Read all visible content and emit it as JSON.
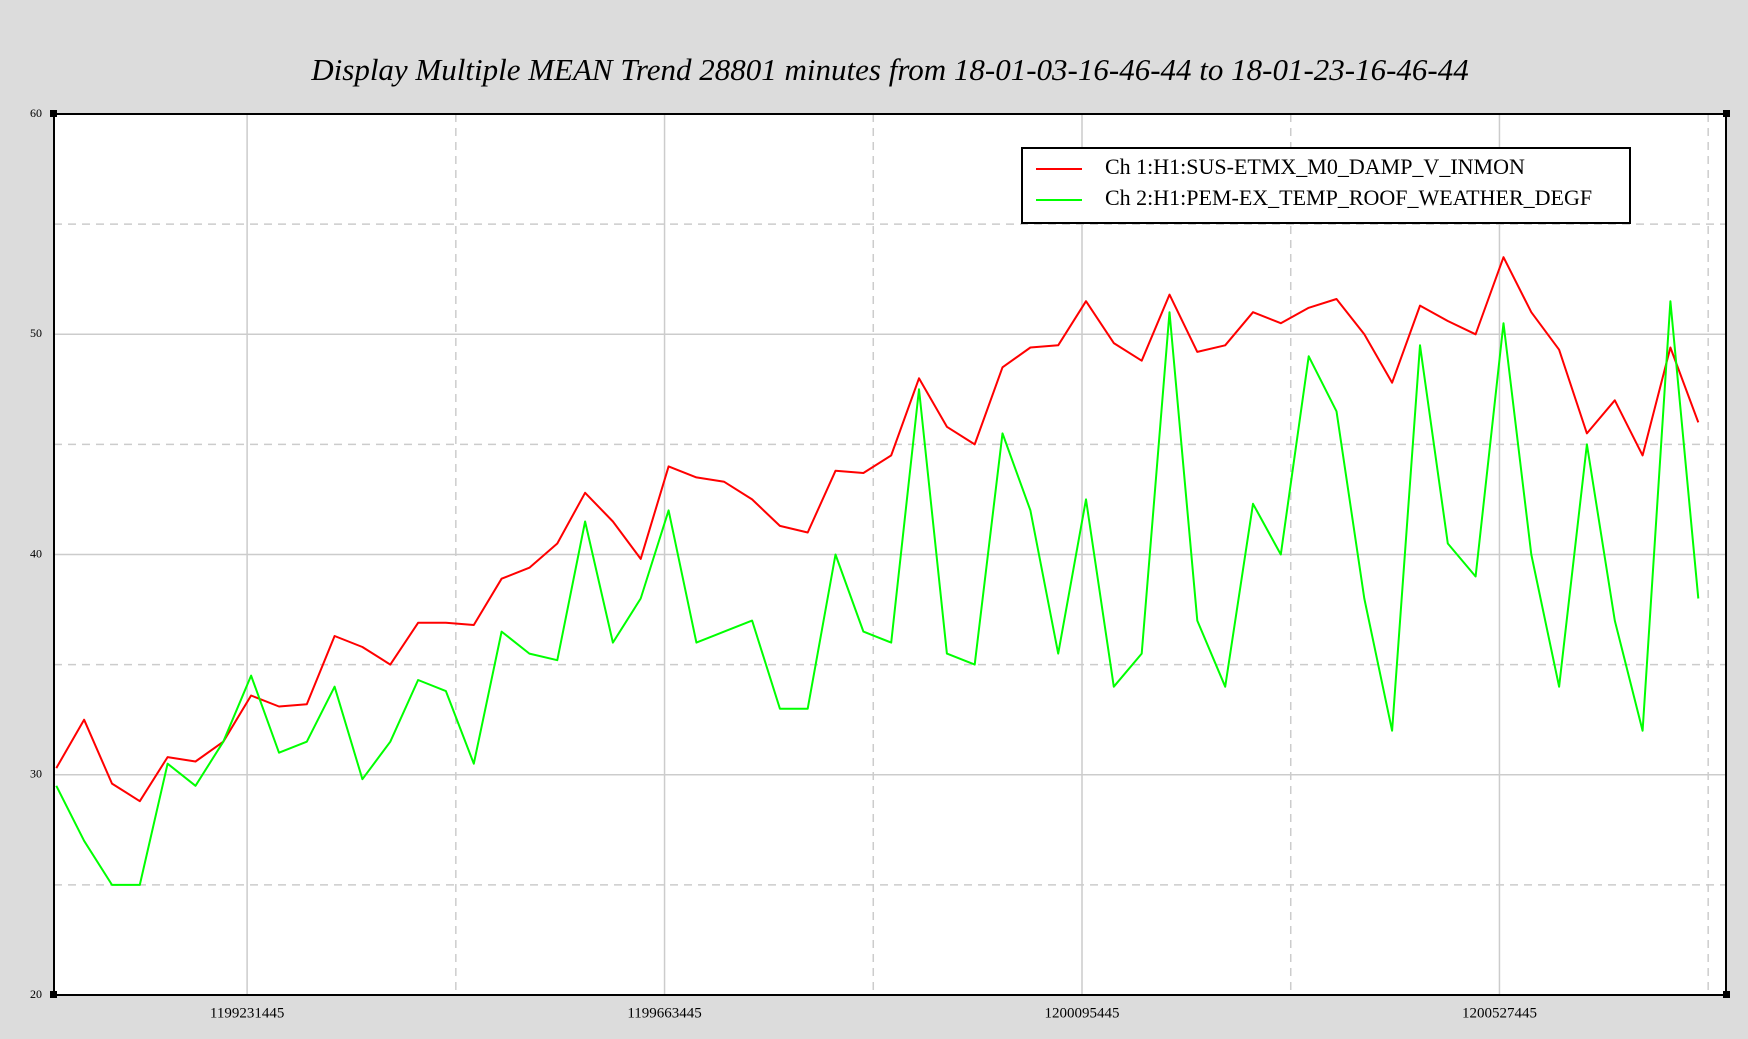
{
  "chart_data": {
    "type": "line",
    "title": "Display Multiple MEAN Trend 28801 minutes from 18-01-03-16-46-44 to 18-01-23-16-46-44",
    "x": [
      1199034000,
      1199062800,
      1199091600,
      1199120400,
      1199149200,
      1199178000,
      1199206800,
      1199235600,
      1199264400,
      1199293200,
      1199322000,
      1199350800,
      1199379600,
      1199408400,
      1199437200,
      1199466000,
      1199494800,
      1199523600,
      1199552400,
      1199581200,
      1199610000,
      1199638800,
      1199667600,
      1199696400,
      1199725200,
      1199754000,
      1199782800,
      1199811600,
      1199840400,
      1199869200,
      1199898000,
      1199926800,
      1199955600,
      1199984400,
      1200013200,
      1200042000,
      1200070800,
      1200099600,
      1200128400,
      1200157200,
      1200186000,
      1200214800,
      1200243600,
      1200272400,
      1200301200,
      1200330000,
      1200358800,
      1200387600,
      1200416400,
      1200445200,
      1200474000,
      1200502800,
      1200531600,
      1200560400,
      1200589200,
      1200618000,
      1200646800,
      1200675600,
      1200704400,
      1200733200
    ],
    "series": [
      {
        "name": "Ch 1:H1:SUS-ETMX_M0_DAMP_V_INMON",
        "color": "#ff0000",
        "values": [
          30.3,
          32.5,
          29.6,
          28.8,
          30.8,
          30.6,
          31.5,
          33.6,
          33.1,
          33.2,
          36.3,
          35.8,
          35.0,
          36.9,
          36.9,
          36.8,
          38.9,
          39.4,
          40.5,
          42.8,
          41.5,
          39.8,
          44.0,
          43.5,
          43.3,
          42.5,
          41.3,
          41.0,
          43.8,
          43.7,
          44.5,
          48.0,
          45.8,
          45.0,
          48.5,
          49.4,
          49.5,
          51.5,
          49.6,
          48.8,
          51.8,
          49.2,
          49.5,
          51.0,
          50.5,
          51.2,
          51.6,
          50.0,
          47.8,
          51.3,
          50.6,
          50.0,
          53.5,
          51.0,
          49.3,
          45.5,
          47.0,
          44.5,
          49.4,
          46.0
        ]
      },
      {
        "name": "Ch 2:H1:PEM-EX_TEMP_ROOF_WEATHER_DEGF",
        "color": "#00ff00",
        "values": [
          29.5,
          27,
          25,
          25,
          30.5,
          29.5,
          31.5,
          34.5,
          31,
          31.5,
          34,
          29.8,
          31.5,
          34.3,
          33.8,
          30.5,
          36.5,
          35.5,
          35.2,
          41.5,
          36,
          38,
          42,
          36,
          36.5,
          37,
          33,
          33,
          40,
          36.5,
          36,
          47.5,
          35.5,
          35,
          45.5,
          42,
          35.5,
          42.5,
          34,
          35.5,
          51,
          37,
          34,
          42.3,
          40,
          49,
          46.5,
          38,
          32,
          49.5,
          40.5,
          39,
          50.5,
          40,
          34,
          45,
          37,
          32,
          51.5,
          38
        ]
      }
    ],
    "xlim": [
      1199031600,
      1200761900
    ],
    "ylim": [
      20,
      60
    ],
    "xticks": [
      1199231445,
      1199663445,
      1200095445,
      1200527445
    ],
    "xminor_ticks": [
      1199447445,
      1199879445,
      1200311445,
      1200743445
    ],
    "yticks": [
      20,
      30,
      40,
      50,
      60
    ],
    "yminor_ticks": [
      25,
      35,
      45,
      55
    ],
    "grid": true,
    "legend": "upper right"
  }
}
